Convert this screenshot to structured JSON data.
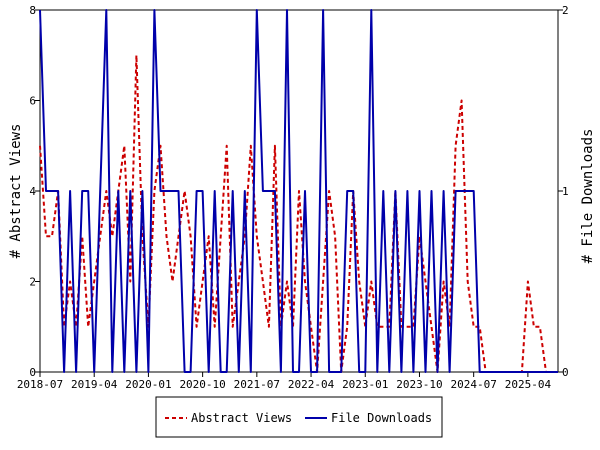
{
  "chart_data": {
    "type": "line",
    "title": "",
    "xlabel": "",
    "y_left_label": "# Abstract Views",
    "y_right_label": "# File Downloads",
    "x_tick_labels": [
      "2018-07",
      "2019-04",
      "2020-01",
      "2020-10",
      "2021-07",
      "2022-04",
      "2023-01",
      "2023-10",
      "2024-07",
      "2025-04"
    ],
    "y_left_ticks": [
      "0",
      "2",
      "4",
      "6",
      "8"
    ],
    "y_right_ticks": [
      "0",
      "1",
      "2"
    ],
    "y_left_range": [
      0,
      8
    ],
    "y_right_range": [
      0,
      2
    ],
    "x_range": [
      "2018-07",
      "2025-09"
    ],
    "grid": false,
    "legend_position": "bottom",
    "series": [
      {
        "name": "Abstract Views",
        "axis": "left",
        "color": "#cc0000",
        "style": "dashed",
        "x": [
          "2018-07",
          "2018-08",
          "2018-09",
          "2018-10",
          "2018-11",
          "2018-12",
          "2019-01",
          "2019-02",
          "2019-03",
          "2019-04",
          "2019-05",
          "2019-06",
          "2019-07",
          "2019-08",
          "2019-09",
          "2019-10",
          "2019-11",
          "2019-12",
          "2020-01",
          "2020-02",
          "2020-03",
          "2020-04",
          "2020-05",
          "2020-06",
          "2020-07",
          "2020-08",
          "2020-09",
          "2020-10",
          "2020-11",
          "2020-12",
          "2021-01",
          "2021-02",
          "2021-03",
          "2021-04",
          "2021-05",
          "2021-06",
          "2021-07",
          "2021-08",
          "2021-09",
          "2021-10",
          "2021-11",
          "2021-12",
          "2022-01",
          "2022-02",
          "2022-03",
          "2022-04",
          "2022-05",
          "2022-06",
          "2022-07",
          "2022-08",
          "2022-09",
          "2022-10",
          "2022-11",
          "2022-12",
          "2023-01",
          "2023-02",
          "2023-03",
          "2023-04",
          "2023-05",
          "2023-06",
          "2023-07",
          "2023-08",
          "2023-09",
          "2023-10",
          "2023-11",
          "2023-12",
          "2024-01",
          "2024-02",
          "2024-03",
          "2024-04",
          "2024-05",
          "2024-06",
          "2024-07",
          "2024-08",
          "2024-09",
          "2024-10",
          "2024-11",
          "2024-12",
          "2025-01",
          "2025-02",
          "2025-03",
          "2025-04",
          "2025-05",
          "2025-06",
          "2025-07",
          "2025-08",
          "2025-09"
        ],
        "values": [
          5,
          3,
          3,
          4,
          1,
          2,
          1,
          3,
          1,
          2,
          3,
          4,
          3,
          4,
          5,
          2,
          7,
          3,
          1,
          4,
          5,
          3,
          2,
          3,
          4,
          3,
          1,
          2,
          3,
          1,
          3,
          5,
          1,
          2,
          3,
          5,
          3,
          2,
          1,
          5,
          1,
          2,
          1,
          4,
          2,
          1,
          0,
          2,
          4,
          3,
          0,
          1,
          4,
          2,
          1,
          2,
          1,
          1,
          1,
          4,
          1,
          1,
          1,
          3,
          2,
          1,
          0,
          2,
          1,
          5,
          6,
          2,
          1,
          1,
          0,
          0,
          0,
          0,
          0,
          0,
          0,
          2,
          1,
          1,
          0,
          0,
          0
        ]
      },
      {
        "name": "File Downloads",
        "axis": "right",
        "color": "#0000aa",
        "style": "solid",
        "x": [
          "2018-07",
          "2018-08",
          "2018-09",
          "2018-10",
          "2018-11",
          "2018-12",
          "2019-01",
          "2019-02",
          "2019-03",
          "2019-04",
          "2019-05",
          "2019-06",
          "2019-07",
          "2019-08",
          "2019-09",
          "2019-10",
          "2019-11",
          "2019-12",
          "2020-01",
          "2020-02",
          "2020-03",
          "2020-04",
          "2020-05",
          "2020-06",
          "2020-07",
          "2020-08",
          "2020-09",
          "2020-10",
          "2020-11",
          "2020-12",
          "2021-01",
          "2021-02",
          "2021-03",
          "2021-04",
          "2021-05",
          "2021-06",
          "2021-07",
          "2021-08",
          "2021-09",
          "2021-10",
          "2021-11",
          "2021-12",
          "2022-01",
          "2022-02",
          "2022-03",
          "2022-04",
          "2022-05",
          "2022-06",
          "2022-07",
          "2022-08",
          "2022-09",
          "2022-10",
          "2022-11",
          "2022-12",
          "2023-01",
          "2023-02",
          "2023-03",
          "2023-04",
          "2023-05",
          "2023-06",
          "2023-07",
          "2023-08",
          "2023-09",
          "2023-10",
          "2023-11",
          "2023-12",
          "2024-01",
          "2024-02",
          "2024-03",
          "2024-04",
          "2024-05",
          "2024-06",
          "2024-07",
          "2024-08",
          "2024-09",
          "2024-10",
          "2024-11",
          "2024-12",
          "2025-01",
          "2025-02",
          "2025-03",
          "2025-04",
          "2025-05",
          "2025-06",
          "2025-07",
          "2025-08",
          "2025-09"
        ],
        "values": [
          2,
          1,
          1,
          1,
          0,
          1,
          0,
          1,
          1,
          0,
          1,
          2,
          0,
          1,
          0,
          1,
          0,
          1,
          0,
          2,
          1,
          1,
          1,
          1,
          0,
          0,
          1,
          1,
          0,
          1,
          0,
          0,
          1,
          0,
          1,
          0,
          2,
          1,
          1,
          1,
          0,
          2,
          0,
          0,
          1,
          0,
          0,
          2,
          0,
          0,
          0,
          1,
          1,
          0,
          0,
          2,
          0,
          1,
          0,
          1,
          0,
          1,
          0,
          1,
          0,
          1,
          0,
          1,
          0,
          1,
          1,
          1,
          1,
          0,
          0,
          0,
          0,
          0,
          0,
          0,
          0,
          0,
          0,
          0,
          0,
          0,
          0
        ]
      }
    ]
  }
}
